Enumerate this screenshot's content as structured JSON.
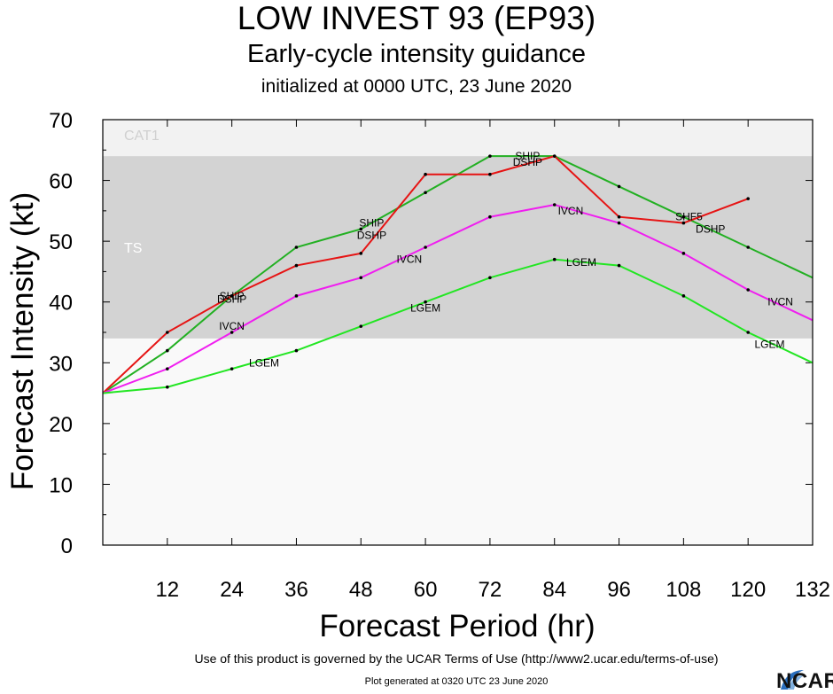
{
  "header": {
    "title": "LOW INVEST 93 (EP93)",
    "subtitle": "Early-cycle intensity guidance",
    "initialized": "initialized at 0000 UTC, 23 June 2020"
  },
  "footer": {
    "terms": "Use of this product is governed by the UCAR Terms of Use (http://www2.ucar.edu/terms-of-use)",
    "generated": "Plot generated at 0320 UTC   23 June 2020",
    "logo_text": "NCAR"
  },
  "chart_data": {
    "type": "line",
    "xlabel": "Forecast Period (hr)",
    "ylabel": "Forecast Intensity (kt)",
    "xlim": [
      0,
      132
    ],
    "ylim": [
      0,
      70
    ],
    "xticks": [
      12,
      24,
      36,
      48,
      60,
      72,
      84,
      96,
      108,
      120,
      132
    ],
    "yticks": [
      0,
      10,
      20,
      30,
      40,
      50,
      60,
      70
    ],
    "bands": [
      {
        "label": "CAT1",
        "from": 64,
        "to": 70,
        "color": "#f2f2f2"
      },
      {
        "label": "TS",
        "from": 34,
        "to": 64,
        "color": "#d3d3d3"
      }
    ],
    "series": [
      {
        "name": "SHIP",
        "color": "#22b022",
        "x": [
          0,
          12,
          24,
          36,
          48,
          60,
          72,
          84,
          96,
          108,
          120,
          132
        ],
        "y": [
          25,
          32,
          41,
          49,
          52,
          58,
          64,
          64,
          59,
          54,
          49,
          44
        ]
      },
      {
        "name": "DSHP",
        "color": "#e61414",
        "x": [
          0,
          12,
          24,
          36,
          48,
          60,
          72,
          84,
          96,
          108,
          120
        ],
        "y": [
          25,
          35,
          41,
          46,
          48,
          61,
          61,
          64,
          54,
          53,
          57
        ]
      },
      {
        "name": "IVCN",
        "color": "#f01ef0",
        "x": [
          0,
          12,
          24,
          36,
          48,
          60,
          72,
          84,
          96,
          108,
          120,
          132
        ],
        "y": [
          25,
          29,
          35,
          41,
          44,
          49,
          54,
          56,
          53,
          48,
          42,
          37
        ]
      },
      {
        "name": "LGEM",
        "color": "#22e622",
        "x": [
          0,
          12,
          24,
          36,
          48,
          60,
          72,
          84,
          96,
          108,
          120,
          132
        ],
        "y": [
          25,
          26,
          29,
          32,
          36,
          40,
          44,
          47,
          46,
          41,
          35,
          30
        ]
      }
    ],
    "line_labels": [
      {
        "text": "SHIP",
        "x": 24,
        "y": 41
      },
      {
        "text": "DSHP",
        "x": 24,
        "y": 40.5
      },
      {
        "text": "SHIP",
        "x": 50,
        "y": 53
      },
      {
        "text": "DSHP",
        "x": 50,
        "y": 51
      },
      {
        "text": "SHIP",
        "x": 79,
        "y": 64
      },
      {
        "text": "DSHP",
        "x": 79,
        "y": 63
      },
      {
        "text": "SHF5",
        "x": 109,
        "y": 54
      },
      {
        "text": "DSHP",
        "x": 113,
        "y": 52
      },
      {
        "text": "IVCN",
        "x": 24,
        "y": 36
      },
      {
        "text": "IVCN",
        "x": 57,
        "y": 47
      },
      {
        "text": "IVCN",
        "x": 87,
        "y": 55
      },
      {
        "text": "IVCN",
        "x": 126,
        "y": 40
      },
      {
        "text": "LGEM",
        "x": 30,
        "y": 30
      },
      {
        "text": "LGEM",
        "x": 60,
        "y": 39
      },
      {
        "text": "LGEM",
        "x": 89,
        "y": 46.5
      },
      {
        "text": "LGEM",
        "x": 124,
        "y": 33
      }
    ]
  }
}
